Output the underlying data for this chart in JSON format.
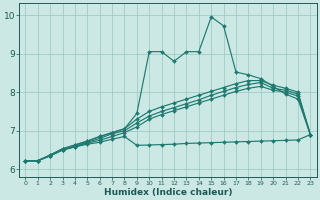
{
  "xlabel": "Humidex (Indice chaleur)",
  "ylabel": "",
  "xlim": [
    -0.5,
    23.5
  ],
  "ylim": [
    5.8,
    10.3
  ],
  "xticks": [
    0,
    1,
    2,
    3,
    4,
    5,
    6,
    7,
    8,
    9,
    10,
    11,
    12,
    13,
    14,
    15,
    16,
    17,
    18,
    19,
    20,
    21,
    22,
    23
  ],
  "yticks": [
    6,
    7,
    8,
    9,
    10
  ],
  "bg_color": "#cce8e4",
  "grid_color": "#a0ccc8",
  "line_color": "#1e7a70",
  "lines": [
    [
      6.22,
      6.22,
      6.35,
      6.5,
      6.58,
      6.65,
      6.7,
      6.78,
      6.85,
      6.62,
      6.63,
      6.64,
      6.65,
      6.67,
      6.68,
      6.69,
      6.7,
      6.71,
      6.72,
      6.73,
      6.74,
      6.75,
      6.76,
      6.9
    ],
    [
      6.22,
      6.22,
      6.35,
      6.5,
      6.58,
      6.68,
      6.75,
      6.85,
      6.95,
      7.1,
      7.3,
      7.42,
      7.52,
      7.62,
      7.72,
      7.82,
      7.92,
      8.02,
      8.1,
      8.15,
      8.05,
      8.0,
      7.9,
      6.9
    ],
    [
      6.22,
      6.22,
      6.35,
      6.5,
      6.6,
      6.7,
      6.8,
      6.92,
      7.0,
      7.2,
      7.38,
      7.5,
      7.6,
      7.7,
      7.8,
      7.92,
      8.02,
      8.12,
      8.2,
      8.25,
      8.1,
      8.05,
      7.95,
      6.9
    ],
    [
      6.22,
      6.22,
      6.37,
      6.53,
      6.63,
      6.73,
      6.85,
      6.95,
      7.05,
      7.3,
      7.5,
      7.62,
      7.72,
      7.82,
      7.92,
      8.02,
      8.12,
      8.22,
      8.3,
      8.3,
      8.18,
      8.1,
      8.0,
      6.9
    ],
    [
      6.22,
      6.22,
      6.37,
      6.53,
      6.63,
      6.73,
      6.85,
      6.95,
      7.05,
      7.45,
      9.05,
      9.05,
      8.8,
      9.05,
      9.05,
      9.95,
      9.72,
      8.52,
      8.45,
      8.35,
      8.15,
      7.95,
      7.82,
      6.9
    ]
  ],
  "marker": "D",
  "markersize": 2.0,
  "linewidth": 0.85
}
